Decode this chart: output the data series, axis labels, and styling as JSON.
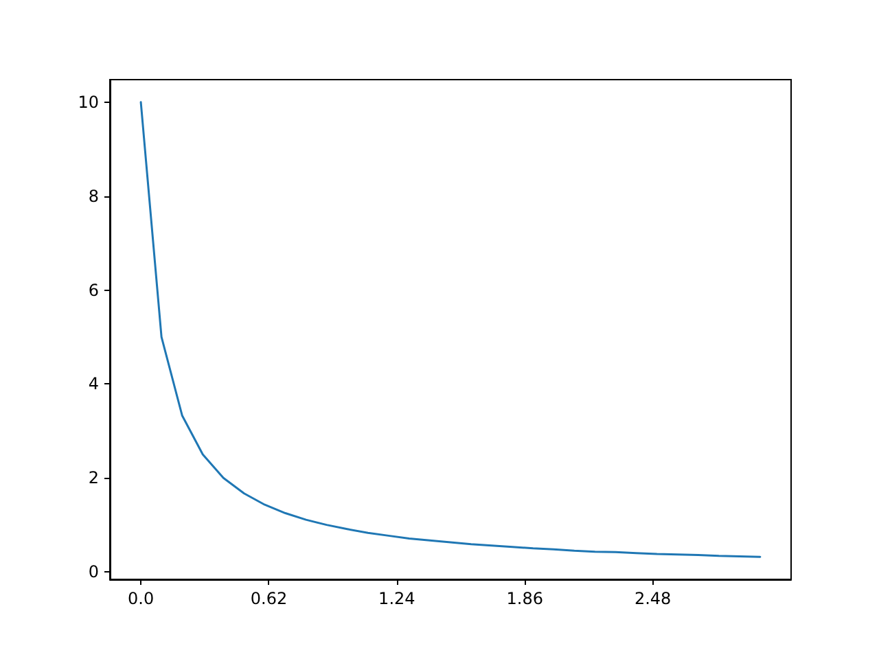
{
  "chart_data": {
    "type": "line",
    "x": [
      0,
      0.1,
      0.2,
      0.3,
      0.4,
      0.5,
      0.6,
      0.7,
      0.8,
      0.9,
      1.0,
      1.1,
      1.2,
      1.3,
      1.4,
      1.5,
      1.6,
      1.7,
      1.8,
      1.9,
      2.0,
      2.1,
      2.2,
      2.3,
      2.4,
      2.5,
      2.6,
      2.7,
      2.8,
      2.9,
      3.0
    ],
    "series": [
      {
        "color": "#1f77b4",
        "values": [
          10,
          5,
          3.33,
          2.5,
          2,
          1.67,
          1.43,
          1.25,
          1.11,
          1,
          0.91,
          0.83,
          0.77,
          0.71,
          0.67,
          0.63,
          0.59,
          0.56,
          0.53,
          0.5,
          0.48,
          0.45,
          0.43,
          0.42,
          0.4,
          0.38,
          0.37,
          0.36,
          0.34,
          0.33,
          0.32
        ]
      }
    ],
    "xlim": [
      -0.15,
      3.15
    ],
    "ylim": [
      -0.16,
      10.48
    ],
    "xticks": [
      {
        "value": 0,
        "label": "0.0"
      },
      0.62,
      1.24,
      1.86,
      2.48
    ],
    "yticks": [
      0,
      2,
      4,
      6,
      8,
      10
    ],
    "marker": "none",
    "line_style": "solid"
  }
}
